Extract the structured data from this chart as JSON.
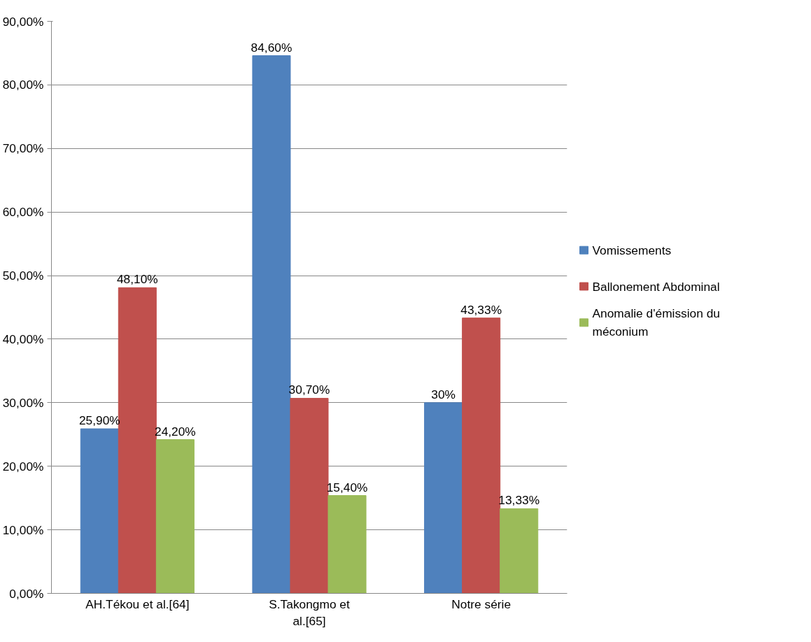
{
  "chart_data": {
    "type": "bar",
    "categories": [
      "AH.Tékou et al.[64]",
      "S.Takongmo et al.[65]",
      "Notre série"
    ],
    "series": [
      {
        "name": "Vomissements",
        "color": "#4f81bd",
        "values": [
          25.9,
          84.6,
          30
        ],
        "value_labels": [
          "25,90%",
          "84,60%",
          "30%"
        ]
      },
      {
        "name": "Ballonement Abdominal",
        "color": "#c0504d",
        "values": [
          48.1,
          30.7,
          43.33
        ],
        "value_labels": [
          "48,10%",
          "30,70%",
          "43,33%"
        ]
      },
      {
        "name": "Anomalie d'émission du méconium",
        "color": "#9bbb59",
        "values": [
          24.2,
          15.4,
          13.33
        ],
        "value_labels": [
          "24,20%",
          "15,40%",
          "13,33%"
        ]
      }
    ],
    "ylim": [
      0,
      90
    ],
    "yticks": [
      {
        "value": 0,
        "label": "0,00%"
      },
      {
        "value": 10,
        "label": "10,00%"
      },
      {
        "value": 20,
        "label": "20,00%"
      },
      {
        "value": 30,
        "label": "30,00%"
      },
      {
        "value": 40,
        "label": "40,00%"
      },
      {
        "value": 50,
        "label": "50,00%"
      },
      {
        "value": 60,
        "label": "60,00%"
      },
      {
        "value": 70,
        "label": "70,00%"
      },
      {
        "value": 80,
        "label": "80,00%"
      },
      {
        "value": 90,
        "label": "90,00%"
      }
    ],
    "grid": "y",
    "legend": "right"
  }
}
